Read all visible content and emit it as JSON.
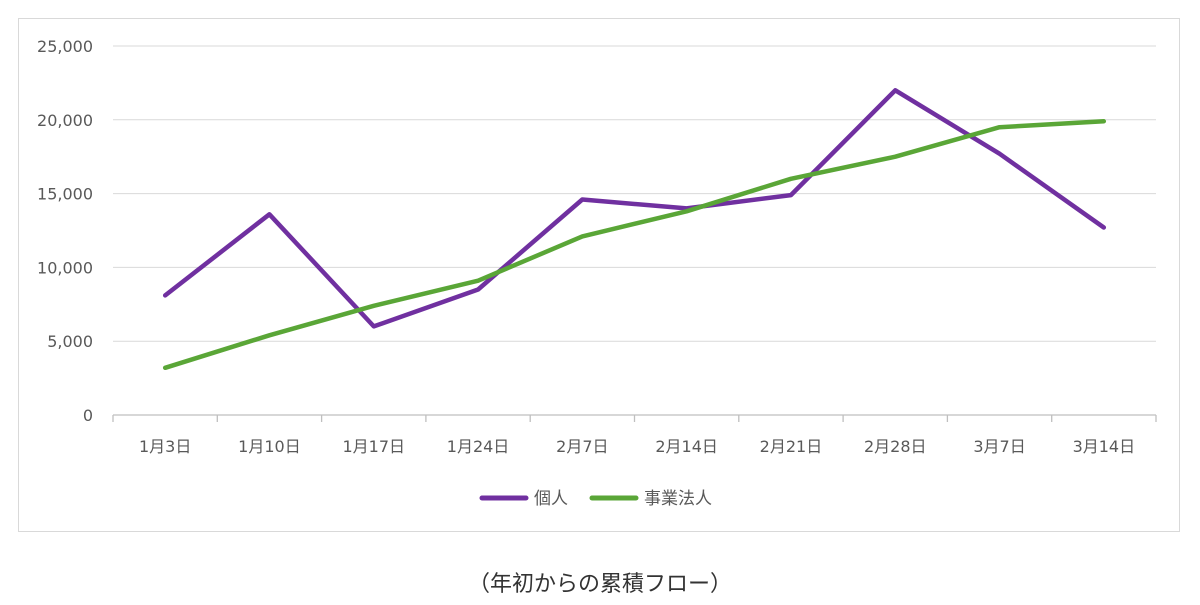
{
  "chart_data": {
    "type": "line",
    "categories": [
      "1月3日",
      "1月10日",
      "1月17日",
      "1月24日",
      "2月7日",
      "2月14日",
      "2月21日",
      "2月28日",
      "3月7日",
      "3月14日"
    ],
    "series": [
      {
        "name": "個人",
        "color": "#7030a0",
        "values": [
          8100,
          13600,
          6000,
          8500,
          14600,
          14000,
          14900,
          22000,
          17700,
          12700
        ]
      },
      {
        "name": "事業法人",
        "color": "#5aa637",
        "values": [
          3200,
          5400,
          7400,
          9100,
          12100,
          13800,
          16000,
          17500,
          19500,
          19900
        ]
      }
    ],
    "yticks": [
      "0",
      "5,000",
      "10,000",
      "15,000",
      "20,000",
      "25,000"
    ],
    "ylim": [
      0,
      25000
    ],
    "grid": true,
    "legend_position": "bottom"
  },
  "caption": "（年初からの累積フロー）"
}
